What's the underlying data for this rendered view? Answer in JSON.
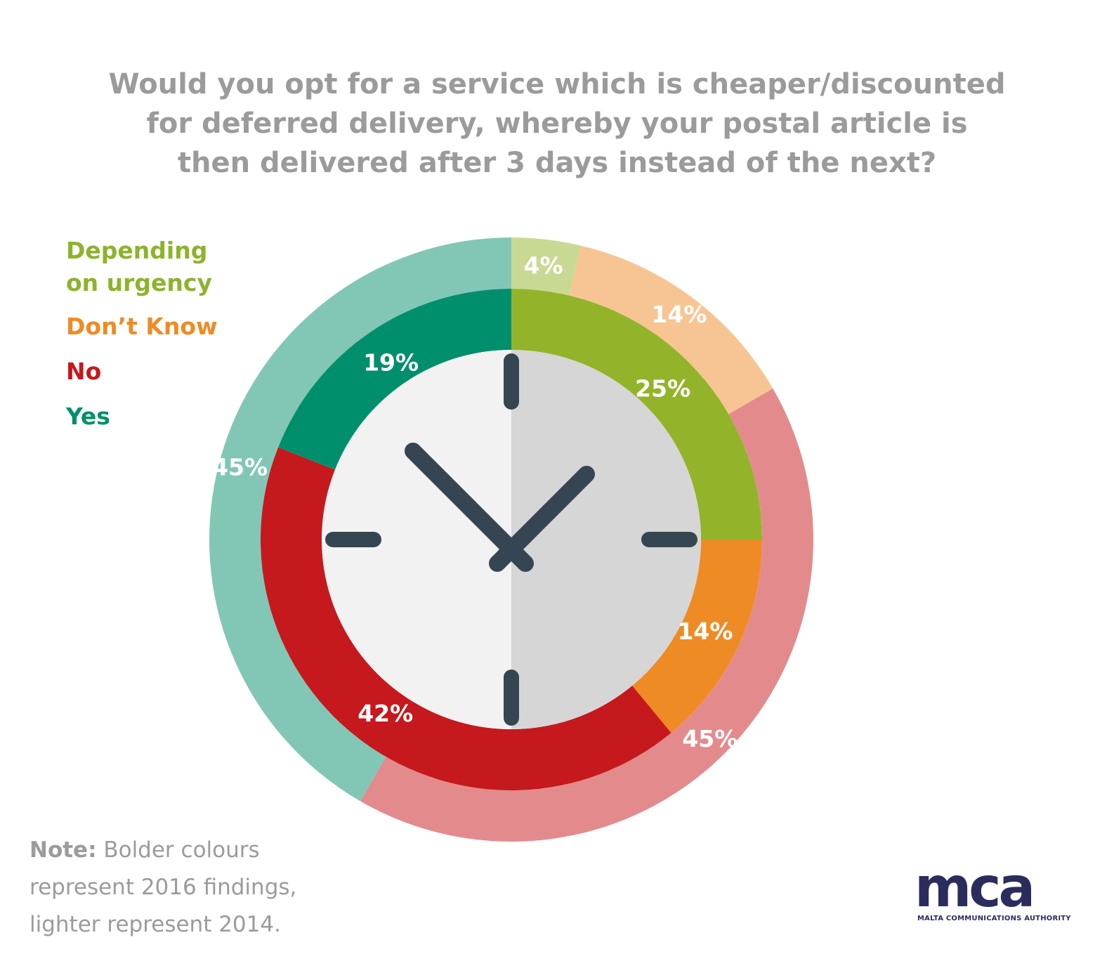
{
  "title_lines": [
    "Would you opt for a service which is cheaper/discounted",
    "for deferred delivery, whereby your postal article is",
    "then delivered after 3 days instead of the next?"
  ],
  "legend": {
    "depending_line1": "Depending",
    "depending_line2": "on urgency",
    "dont_know": "Don’t Know",
    "no": "No",
    "yes": "Yes"
  },
  "colors": {
    "depending_2016": "#93b42a",
    "depending_2014": "#c8d993",
    "dontknow_2016": "#ef8b25",
    "dontknow_2014": "#f7c594",
    "no_2016": "#c5191d",
    "no_2014": "#e38b8c",
    "yes_2016": "#008f6c",
    "yes_2014": "#82c7b6",
    "clock_hand": "#354652",
    "face_left": "#f2f2f2",
    "face_right": "#d6d6d6",
    "legend_depending": "#8db32d",
    "legend_dontknow": "#ef8b25",
    "legend_no": "#c5191d",
    "legend_yes": "#008f6c"
  },
  "chart_data": {
    "type": "donut",
    "title": "Would you opt for a service which is cheaper/discounted for deferred delivery, whereby your postal article is then delivered after 3 days instead of the next?",
    "categories": [
      "Depending on urgency",
      "Don’t Know",
      "No",
      "Yes"
    ],
    "series": [
      {
        "name": "2016",
        "ring": "inner",
        "values": [
          25,
          14,
          42,
          19
        ],
        "labels": [
          "25%",
          "14%",
          "42%",
          "19%"
        ]
      },
      {
        "name": "2014",
        "ring": "outer",
        "values": [
          4,
          14,
          45,
          45
        ],
        "labels": [
          "4%",
          "14%",
          "45%",
          "45%"
        ]
      }
    ]
  },
  "note": {
    "bold": "Note:",
    "line1_rest": " Bolder colours",
    "line2": "represent 2016 findings,",
    "line3": "lighter represent 2014."
  },
  "logo": {
    "text": "mca",
    "tagline": "MALTA COMMUNICATIONS AUTHORITY"
  }
}
